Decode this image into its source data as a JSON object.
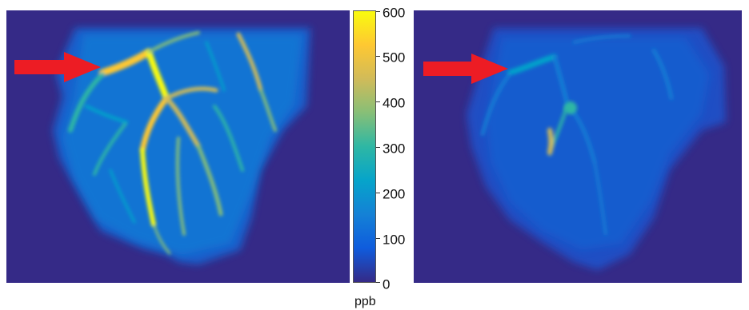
{
  "colors": {
    "background_map": "#352a87",
    "arrow": "#ed1c24",
    "colormap": [
      "#352a87",
      "#0f5cdd",
      "#1481d6",
      "#06a4ca",
      "#2eb7a4",
      "#87bf77",
      "#d1bb59",
      "#fec832",
      "#f9fb0e"
    ]
  },
  "images": {
    "left": {
      "icon": "pre-treatment-ventilation-map"
    },
    "right": {
      "icon": "post-treatment-ventilation-map"
    }
  },
  "colorbar": {
    "ticks": [
      "600",
      "500",
      "400",
      "300",
      "200",
      "100",
      "0"
    ],
    "unit": "ppb",
    "range": [
      0,
      600
    ]
  }
}
